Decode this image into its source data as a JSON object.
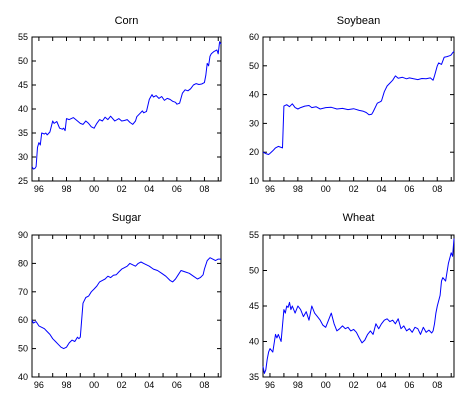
{
  "chart_data": [
    {
      "type": "line",
      "title": "Corn",
      "xlim": [
        1995.5,
        2009.2
      ],
      "ylim": [
        25,
        55
      ],
      "x_tick_labels": [
        "96",
        "98",
        "00",
        "02",
        "04",
        "06",
        "08"
      ],
      "y_tick_labels": [
        "25",
        "30",
        "35",
        "40",
        "45",
        "50",
        "55"
      ],
      "series": [
        {
          "x": [
            1995.5,
            1995.6,
            1995.7,
            1995.8,
            1995.9,
            1996.0,
            1996.1,
            1996.2,
            1996.4,
            1996.5,
            1996.6,
            1996.8,
            1997.0,
            1997.1,
            1997.3,
            1997.5,
            1997.7,
            1997.8,
            1997.9,
            1998.0,
            1998.2,
            1998.5,
            1998.8,
            1999.0,
            1999.2,
            1999.4,
            1999.6,
            1999.8,
            2000.0,
            2000.2,
            2000.4,
            2000.6,
            2000.8,
            2001.0,
            2001.2,
            2001.5,
            2001.8,
            2002.0,
            2002.2,
            2002.4,
            2002.6,
            2002.8,
            2003.0,
            2003.1,
            2003.3,
            2003.5,
            2003.6,
            2003.8,
            2004.0,
            2004.2,
            2004.3,
            2004.5,
            2004.7,
            2004.9,
            2005.1,
            2005.3,
            2005.5,
            2005.7,
            2005.9,
            2006.0,
            2006.2,
            2006.4,
            2006.6,
            2006.8,
            2007.0,
            2007.2,
            2007.4,
            2007.6,
            2007.8,
            2008.0,
            2008.1,
            2008.2,
            2008.3,
            2008.4,
            2008.5,
            2008.7,
            2008.9,
            2009.0,
            2009.1,
            2009.2
          ],
          "y": [
            28,
            27.5,
            27.6,
            28,
            32,
            33,
            32.5,
            35,
            34.8,
            35,
            34.6,
            35.2,
            37.5,
            37,
            37.4,
            36,
            35.8,
            36,
            35.5,
            38,
            37.8,
            38.2,
            37.5,
            37,
            36.8,
            37.5,
            37,
            36.3,
            36,
            37,
            37.8,
            37.5,
            38.3,
            37.8,
            38.5,
            37.5,
            38,
            37.5,
            37.6,
            37.8,
            37.2,
            36.8,
            37.5,
            38.4,
            39,
            39.6,
            39.2,
            39.5,
            42,
            43,
            42.5,
            42.8,
            42.2,
            42.6,
            41.8,
            42.2,
            42,
            41.6,
            41.4,
            41,
            41.2,
            43.3,
            44,
            43.8,
            44.2,
            45,
            45.3,
            45.1,
            45.2,
            45.5,
            47,
            49.5,
            49,
            51,
            51.5,
            52,
            52.3,
            51.5,
            54,
            53.5
          ]
        }
      ]
    },
    {
      "type": "line",
      "title": "Soybean",
      "xlim": [
        1995.5,
        2009.2
      ],
      "ylim": [
        10,
        60
      ],
      "x_tick_labels": [
        "96",
        "98",
        "00",
        "02",
        "04",
        "06",
        "08"
      ],
      "y_tick_labels": [
        "10",
        "20",
        "30",
        "40",
        "50",
        "60"
      ],
      "series": [
        {
          "x": [
            1995.5,
            1995.7,
            1995.9,
            1996.0,
            1996.2,
            1996.4,
            1996.6,
            1996.9,
            1997.0,
            1997.2,
            1997.4,
            1997.6,
            1997.8,
            1998.0,
            1998.2,
            1998.5,
            1998.8,
            1999.0,
            1999.3,
            1999.6,
            2000.0,
            2000.4,
            2000.8,
            2001.2,
            2001.6,
            2002.0,
            2002.4,
            2002.7,
            2002.9,
            2003.1,
            2003.3,
            2003.4,
            2003.5,
            2003.7,
            2003.9,
            2004.0,
            2004.2,
            2004.4,
            2004.6,
            2004.8,
            2005.0,
            2005.2,
            2005.5,
            2005.8,
            2006.0,
            2006.3,
            2006.6,
            2006.9,
            2007.2,
            2007.5,
            2007.7,
            2007.8,
            2008.0,
            2008.1,
            2008.3,
            2008.5,
            2008.7,
            2008.9,
            2009.0,
            2009.1,
            2009.2
          ],
          "y": [
            20,
            19.5,
            19.2,
            19.6,
            20.5,
            21.5,
            22,
            21.5,
            36,
            36.5,
            35.8,
            36.8,
            35.5,
            35,
            35.5,
            36,
            36.2,
            35.5,
            35.8,
            35,
            35.5,
            35.6,
            35,
            35.2,
            34.8,
            35.1,
            34.5,
            34.2,
            33.8,
            33,
            33.2,
            34,
            35,
            37,
            37.5,
            37.8,
            41,
            43,
            44,
            45,
            46.5,
            45.7,
            46,
            45.5,
            45.8,
            45.5,
            45.2,
            45.6,
            45.5,
            45.8,
            45,
            46.5,
            50,
            51,
            50.5,
            53,
            53.2,
            53.5,
            53.8,
            54.5,
            55
          ]
        }
      ]
    },
    {
      "type": "line",
      "title": "Sugar",
      "xlim": [
        1995.5,
        2009.2
      ],
      "ylim": [
        40,
        90
      ],
      "x_tick_labels": [
        "96",
        "98",
        "00",
        "02",
        "04",
        "06",
        "08"
      ],
      "y_tick_labels": [
        "40",
        "50",
        "60",
        "70",
        "80",
        "90"
      ],
      "series": [
        {
          "x": [
            1995.5,
            1995.6,
            1995.8,
            1996.0,
            1996.2,
            1996.4,
            1996.6,
            1996.8,
            1997.0,
            1997.2,
            1997.4,
            1997.6,
            1997.8,
            1998.0,
            1998.2,
            1998.4,
            1998.6,
            1998.8,
            1998.9,
            1999.0,
            1999.2,
            1999.4,
            1999.6,
            1999.8,
            2000.0,
            2000.2,
            2000.4,
            2000.6,
            2000.8,
            2001.0,
            2001.2,
            2001.4,
            2001.6,
            2001.8,
            2002.0,
            2002.2,
            2002.4,
            2002.6,
            2002.8,
            2003.0,
            2003.2,
            2003.4,
            2003.6,
            2003.8,
            2004.0,
            2004.3,
            2004.6,
            2004.9,
            2005.2,
            2005.5,
            2005.7,
            2005.9,
            2006.1,
            2006.3,
            2006.6,
            2006.9,
            2007.2,
            2007.5,
            2007.7,
            2007.9,
            2008.0,
            2008.2,
            2008.4,
            2008.6,
            2008.8,
            2009.0,
            2009.2
          ],
          "y": [
            60,
            59,
            59.5,
            58,
            57.5,
            57,
            56,
            55,
            53.5,
            52.5,
            51.5,
            50.5,
            50,
            50.5,
            52,
            53,
            52.5,
            54,
            53.5,
            54,
            66,
            68,
            68.5,
            70,
            71,
            72,
            73.5,
            74,
            74.5,
            75.5,
            75,
            75.8,
            76,
            77,
            78,
            78.5,
            79,
            80,
            79.5,
            79,
            80,
            80.5,
            80,
            79.5,
            79,
            78,
            77.5,
            76.5,
            75.5,
            74,
            73.5,
            74.5,
            76,
            77.5,
            77,
            76.5,
            75.5,
            74.5,
            75,
            76,
            78,
            81,
            82,
            81.5,
            81,
            81.5,
            81.5
          ]
        }
      ]
    },
    {
      "type": "line",
      "title": "Wheat",
      "xlim": [
        1995.5,
        2009.2
      ],
      "ylim": [
        35,
        55
      ],
      "x_tick_labels": [
        "96",
        "98",
        "00",
        "02",
        "04",
        "06",
        "08"
      ],
      "y_tick_labels": [
        "35",
        "40",
        "45",
        "50",
        "55"
      ],
      "series": [
        {
          "x": [
            1995.5,
            1995.6,
            1995.7,
            1995.8,
            1995.9,
            1996.0,
            1996.2,
            1996.4,
            1996.5,
            1996.6,
            1996.8,
            1997.0,
            1997.1,
            1997.2,
            1997.3,
            1997.4,
            1997.5,
            1997.6,
            1997.8,
            1998.0,
            1998.2,
            1998.4,
            1998.6,
            1998.8,
            1999.0,
            1999.2,
            1999.4,
            1999.6,
            1999.8,
            2000.0,
            2000.2,
            2000.4,
            2000.6,
            2000.8,
            2001.0,
            2001.2,
            2001.4,
            2001.6,
            2001.8,
            2002.0,
            2002.2,
            2002.4,
            2002.6,
            2002.8,
            2003.0,
            2003.2,
            2003.4,
            2003.6,
            2003.8,
            2004.0,
            2004.2,
            2004.4,
            2004.6,
            2004.8,
            2005.0,
            2005.2,
            2005.4,
            2005.6,
            2005.8,
            2006.0,
            2006.2,
            2006.4,
            2006.6,
            2006.8,
            2007.0,
            2007.2,
            2007.4,
            2007.6,
            2007.7,
            2007.8,
            2007.9,
            2008.0,
            2008.2,
            2008.3,
            2008.4,
            2008.6,
            2008.8,
            2009.0,
            2009.1,
            2009.2
          ],
          "y": [
            36.5,
            35.5,
            36,
            37.5,
            38.5,
            39,
            38.5,
            41,
            40.5,
            41,
            40,
            44.5,
            44,
            45,
            44.8,
            45.5,
            44.5,
            45,
            44,
            45,
            44.5,
            43.5,
            44.2,
            43,
            45,
            44,
            43.5,
            43,
            42.3,
            42,
            43,
            44,
            42.5,
            41.5,
            41.8,
            42.2,
            41.8,
            42,
            41.5,
            41.7,
            41.3,
            40.5,
            39.8,
            40.2,
            41,
            41.5,
            41,
            42.5,
            41.8,
            42.5,
            43,
            43.2,
            42.8,
            43,
            42.5,
            43.2,
            41.8,
            42.2,
            41.5,
            41.8,
            41.3,
            42,
            41.8,
            41,
            42,
            41.3,
            41.6,
            41.2,
            41.5,
            42.5,
            44,
            45,
            46.5,
            48.5,
            49,
            48.5,
            51,
            52.5,
            52,
            54.5
          ]
        }
      ]
    }
  ]
}
